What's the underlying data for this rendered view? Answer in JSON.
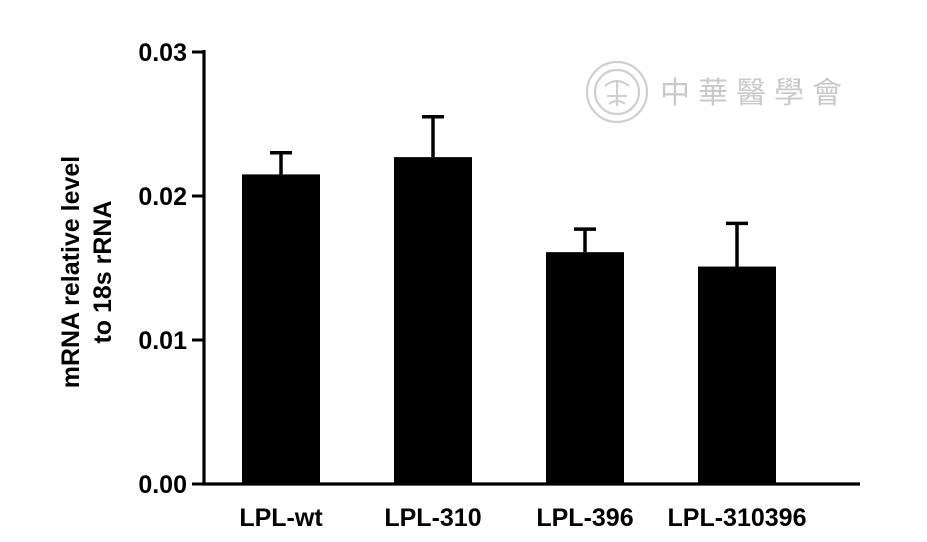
{
  "chart_data": {
    "type": "bar",
    "categories": [
      "LPL-wt",
      "LPL-310",
      "LPL-396",
      "LPL-310396"
    ],
    "values": [
      0.0215,
      0.0227,
      0.0161,
      0.0151
    ],
    "errors": [
      0.0015,
      0.0028,
      0.0016,
      0.003
    ],
    "ylabel_line1": "mRNA relative level",
    "ylabel_line2": "to 18s rRNA",
    "ylim": [
      0,
      0.03
    ],
    "yticks": [
      0.0,
      0.01,
      0.02,
      0.03
    ],
    "ytick_labels": [
      "0.00",
      "0.01",
      "0.02",
      "0.03"
    ],
    "bar_color": "#000000",
    "grid": false
  },
  "watermark": {
    "text": "中華醫學會",
    "icon": "seal-icon",
    "color": "#c9c9c9"
  }
}
